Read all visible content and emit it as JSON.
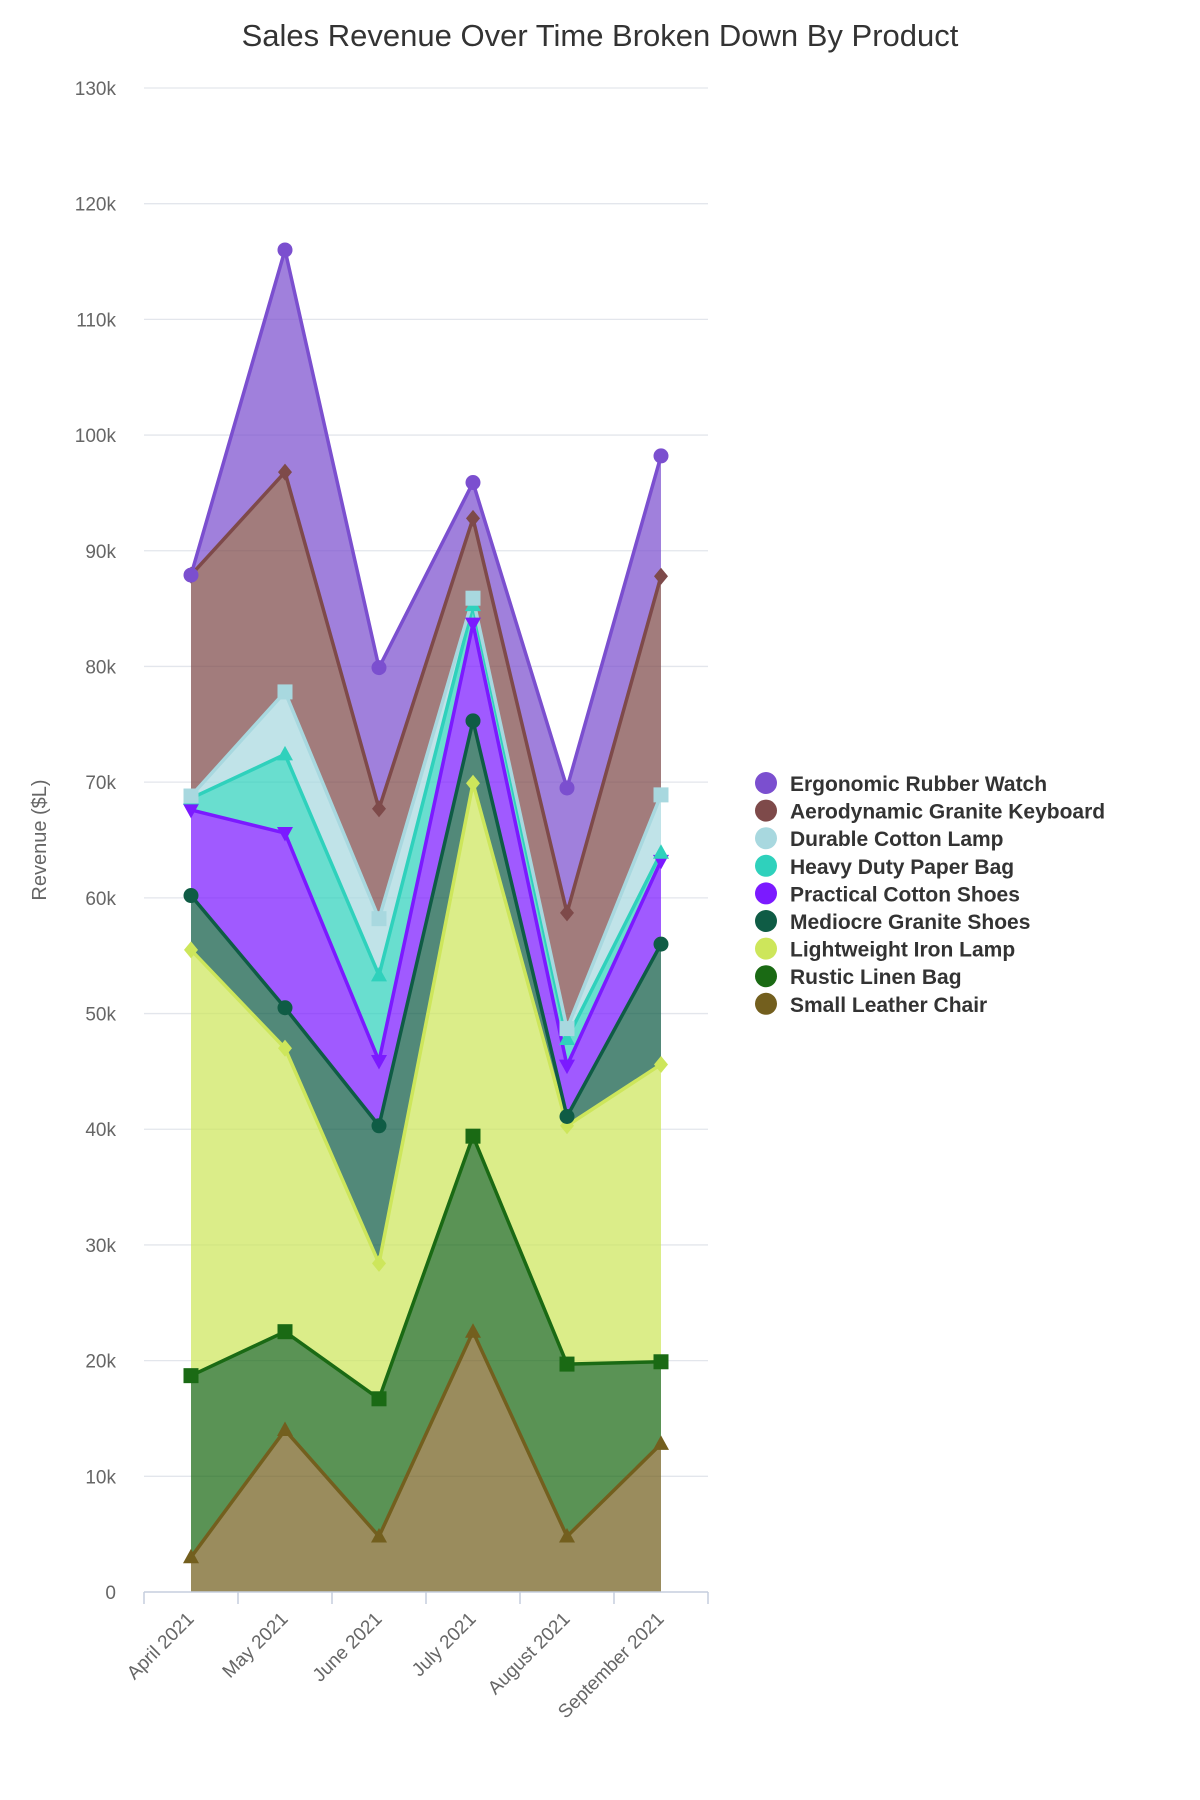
{
  "chart_data": {
    "type": "area",
    "stacked": true,
    "title": "Sales Revenue Over Time Broken Down By Product",
    "xlabel": "",
    "ylabel": "Revenue ($L)",
    "categories": [
      "April 2021",
      "May 2021",
      "June 2021",
      "July 2021",
      "August 2021",
      "September 2021"
    ],
    "ylim": [
      0,
      130000
    ],
    "yticks": [
      {
        "value": 0,
        "label": "0"
      },
      {
        "value": 10000,
        "label": "10k"
      },
      {
        "value": 20000,
        "label": "20k"
      },
      {
        "value": 30000,
        "label": "30k"
      },
      {
        "value": 40000,
        "label": "40k"
      },
      {
        "value": 50000,
        "label": "50k"
      },
      {
        "value": 60000,
        "label": "60k"
      },
      {
        "value": 70000,
        "label": "70k"
      },
      {
        "value": 80000,
        "label": "80k"
      },
      {
        "value": 90000,
        "label": "90k"
      },
      {
        "value": 100000,
        "label": "100k"
      },
      {
        "value": 110000,
        "label": "110k"
      },
      {
        "value": 120000,
        "label": "120k"
      },
      {
        "value": 130000,
        "label": "130k"
      }
    ],
    "grid": true,
    "legend_position": "right",
    "series": [
      {
        "name": "Small Leather Chair",
        "color": "#735f1e",
        "marker": "triangle-up",
        "values": [
          3000,
          14000,
          4800,
          22500,
          4800,
          12800
        ]
      },
      {
        "name": "Rustic Linen Bag",
        "color": "#1a6a14",
        "marker": "square",
        "values": [
          15700,
          8500,
          11900,
          16900,
          14900,
          7100
        ]
      },
      {
        "name": "Lightweight Iron Lamp",
        "color": "#cde65b",
        "marker": "diamond",
        "values": [
          36800,
          24500,
          11700,
          30500,
          20600,
          25700
        ]
      },
      {
        "name": "Mediocre Granite Shoes",
        "color": "#0f5c45",
        "marker": "circle",
        "values": [
          4700,
          3500,
          11900,
          5400,
          800,
          10400
        ]
      },
      {
        "name": "Practical Cotton Shoes",
        "color": "#7b1aff",
        "marker": "triangle-down",
        "values": [
          7400,
          15100,
          5600,
          8400,
          4400,
          7200
        ]
      },
      {
        "name": "Heavy Duty Paper Bag",
        "color": "#2fd1bc",
        "marker": "triangle-up",
        "values": [
          1000,
          6800,
          7400,
          1600,
          2300,
          700
        ]
      },
      {
        "name": "Durable Cotton Lamp",
        "color": "#a8d8df",
        "marker": "square",
        "values": [
          200,
          5400,
          4900,
          600,
          900,
          5000
        ]
      },
      {
        "name": "Aerodynamic Granite Keyboard",
        "color": "#7e4a4a",
        "marker": "diamond",
        "values": [
          19100,
          19000,
          9500,
          6900,
          10000,
          18900
        ]
      },
      {
        "name": "Ergonomic Rubber Watch",
        "color": "#7b4fcf",
        "marker": "circle",
        "values": [
          0,
          19200,
          12200,
          3100,
          10800,
          10400
        ]
      }
    ]
  }
}
